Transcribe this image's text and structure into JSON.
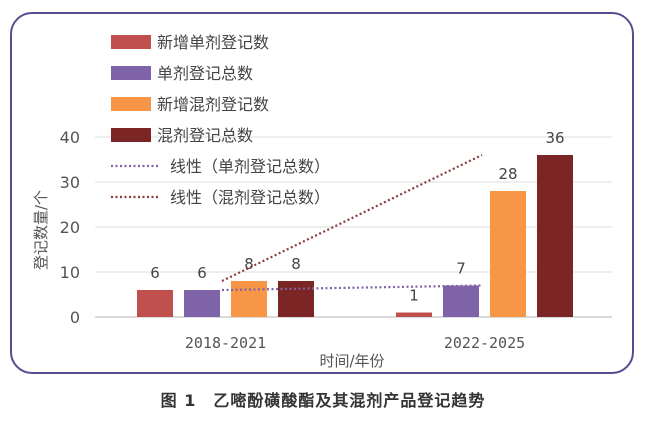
{
  "chart_data": {
    "type": "bar",
    "title": "",
    "caption": "图 1　乙嘧酚磺酸酯及其混剂产品登记趋势",
    "xlabel": "时间/年份",
    "ylabel": "登记数量/个",
    "ylim": [
      0,
      40
    ],
    "yticks": [
      0,
      10,
      20,
      30,
      40
    ],
    "grid": true,
    "legend_position": "top-left",
    "categories": [
      "2018-2021",
      "2022-2025"
    ],
    "series": [
      {
        "name": "新增单剂登记数",
        "values": [
          6,
          1
        ],
        "color": "#c0504d"
      },
      {
        "name": "单剂登记总数",
        "values": [
          6,
          7
        ],
        "color": "#7f63a8"
      },
      {
        "name": "新增混剂登记数",
        "values": [
          8,
          28
        ],
        "color": "#f79646"
      },
      {
        "name": "混剂登记总数",
        "values": [
          8,
          36
        ],
        "color": "#7b2525"
      }
    ],
    "trendlines": [
      {
        "name": "线性（单剂登记总数）",
        "of": "单剂登记总数",
        "values": [
          6,
          7
        ],
        "color": "#7f63a8",
        "style": "dotted"
      },
      {
        "name": "线性（混剂登记总数）",
        "of": "混剂登记总数",
        "values": [
          8,
          36
        ],
        "color": "#8b3a3a",
        "style": "dotted"
      }
    ]
  }
}
